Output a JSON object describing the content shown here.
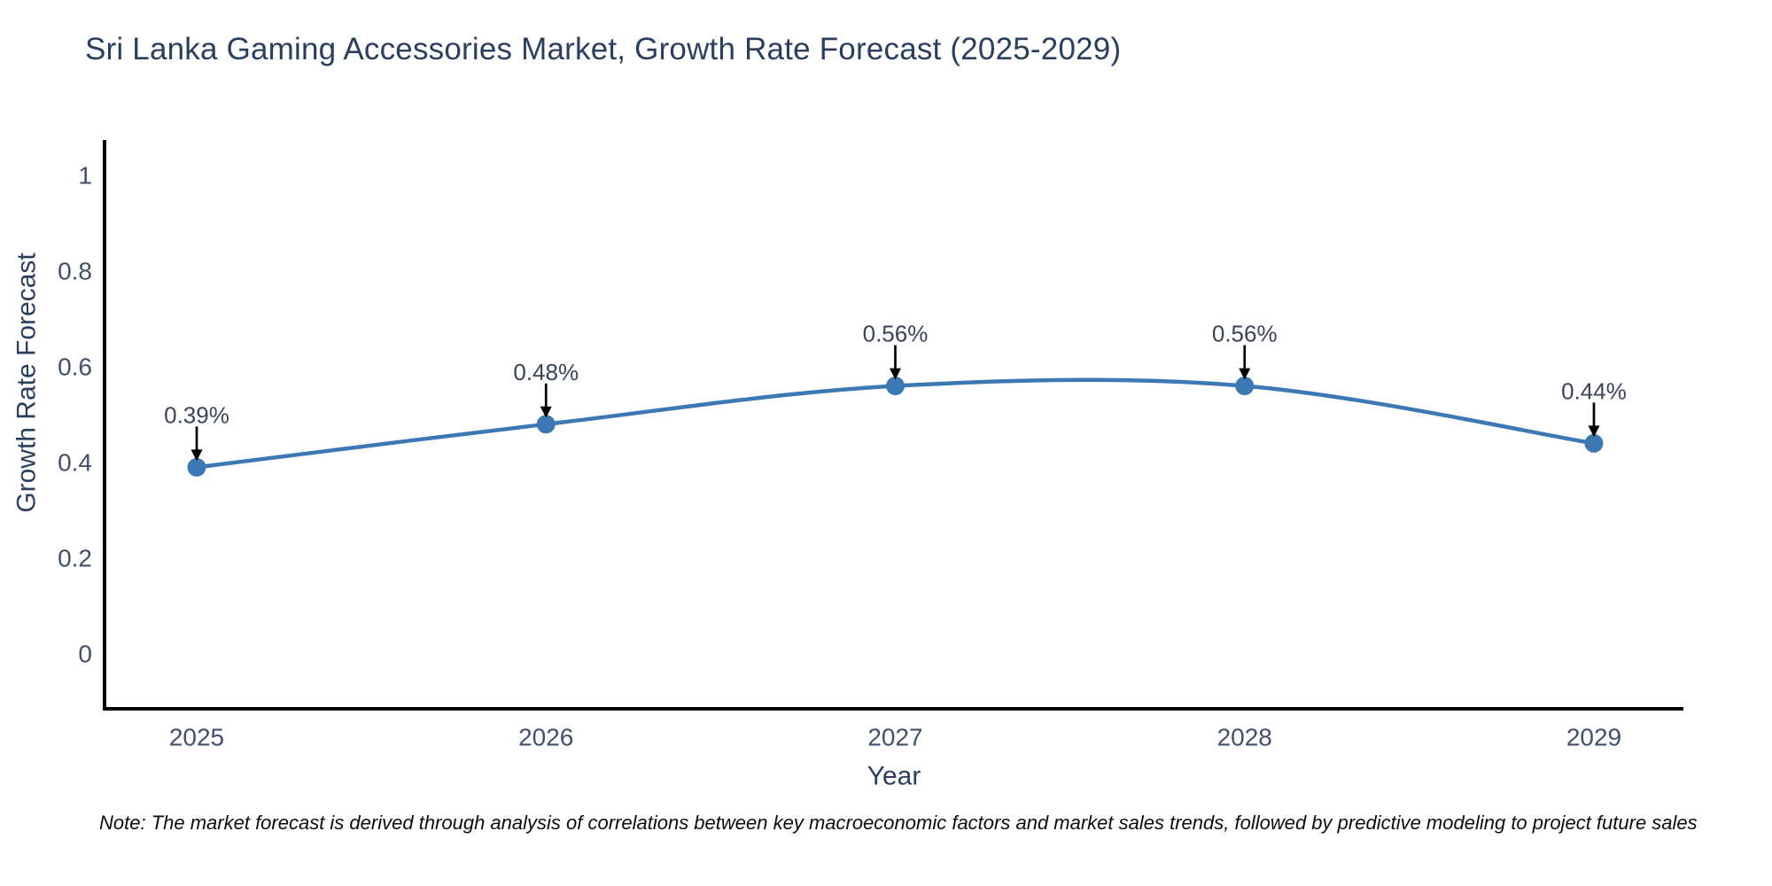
{
  "header": {
    "title": "Sri Lanka Gaming Accessories Market, Growth Rate Forecast (2025-2029)"
  },
  "chart_data": {
    "type": "line",
    "line_shape": "spline",
    "x": [
      2025,
      2026,
      2027,
      2028,
      2029
    ],
    "y": [
      0.39,
      0.48,
      0.56,
      0.56,
      0.44
    ],
    "point_labels": [
      "0.39%",
      "0.48%",
      "0.56%",
      "0.56%",
      "0.44%"
    ],
    "title": "Sri Lanka Gaming Accessories Market, Growth Rate Forecast (2025-2029)",
    "xlabel": "Year",
    "ylabel": "Growth Rate Forecast",
    "xticks": [
      "2025",
      "2026",
      "2027",
      "2028",
      "2029"
    ],
    "yticks": [
      0,
      0.2,
      0.4,
      0.6,
      0.8,
      1
    ],
    "ylim": [
      -0.115,
      1.08
    ],
    "grid": false,
    "legend": "none",
    "colors": {
      "line": "#3c78b4",
      "marker": "#3c78b4",
      "axis": "#000000",
      "title_text": "#2a3f5f",
      "tick_text": "#42506b",
      "annotation_text": "#3a4458",
      "arrow": "#000000"
    }
  },
  "footer": {
    "note": "Note: The market forecast is derived through analysis of correlations between key macroeconomic factors and market sales trends, followed by predictive modeling to project future sales"
  }
}
